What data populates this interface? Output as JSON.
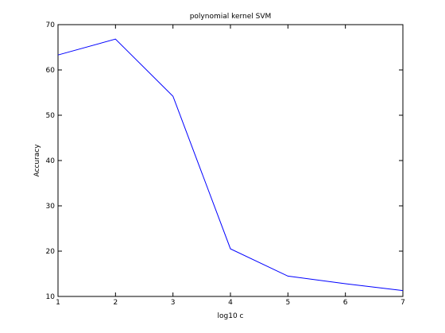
{
  "chart_data": {
    "type": "line",
    "title": "polynomial kernel SVM",
    "xlabel": "log10 c",
    "ylabel": "Accuracy",
    "xlim": [
      1,
      7
    ],
    "ylim": [
      10,
      70
    ],
    "x_ticks": [
      "1",
      "2",
      "3",
      "4",
      "5",
      "6",
      "7"
    ],
    "y_ticks": [
      "10",
      "20",
      "30",
      "40",
      "50",
      "60",
      "70"
    ],
    "grid": false,
    "series": [
      {
        "color": "#0000ff",
        "x": [
          1,
          2,
          3,
          4,
          5,
          6,
          7
        ],
        "y": [
          63.3,
          66.8,
          54.2,
          20.5,
          14.5,
          12.8,
          11.3
        ]
      }
    ]
  }
}
